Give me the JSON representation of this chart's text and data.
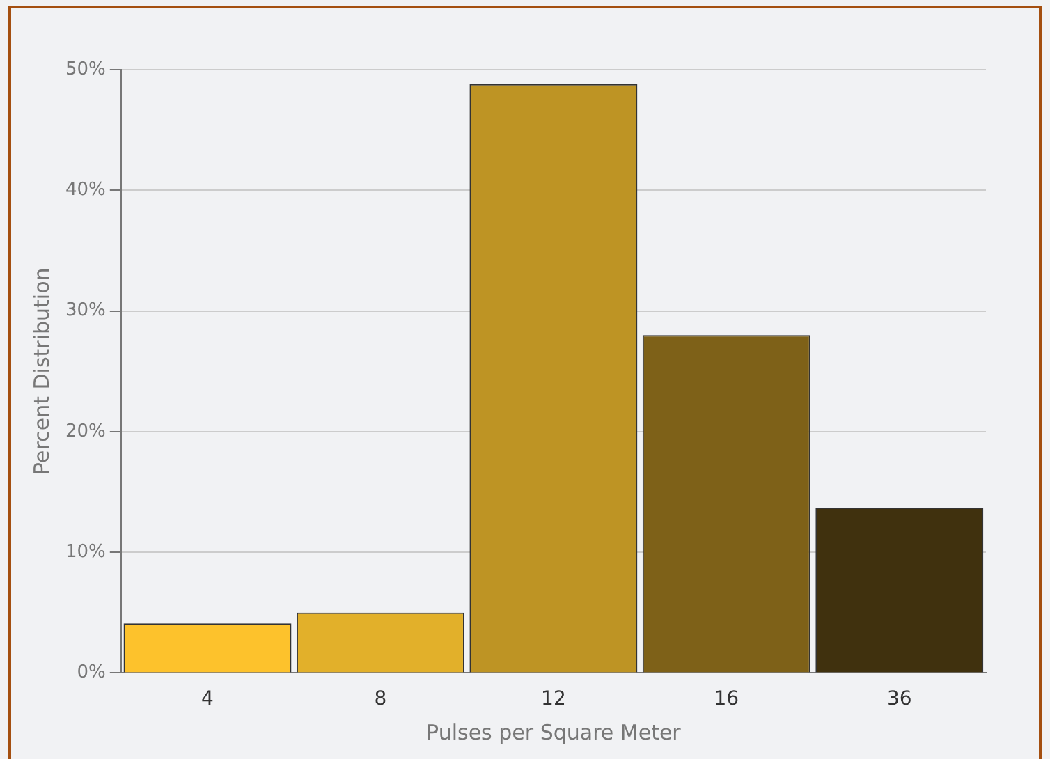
{
  "chart_data": {
    "type": "bar",
    "xlabel": "Pulses per Square Meter",
    "ylabel": "Percent Distribution",
    "categories": [
      "4",
      "8",
      "12",
      "16",
      "36"
    ],
    "values": [
      4.1,
      5.0,
      48.8,
      28.0,
      13.7
    ],
    "colors": [
      "#fdc22c",
      "#e2b02a",
      "#be9424",
      "#7e6118",
      "#40310e"
    ],
    "ylim": [
      0,
      50
    ],
    "yticks": [
      {
        "value": 0,
        "label": "0%"
      },
      {
        "value": 10,
        "label": "10%"
      },
      {
        "value": 20,
        "label": "20%"
      },
      {
        "value": 30,
        "label": "30%"
      },
      {
        "value": 40,
        "label": "40%"
      },
      {
        "value": 50,
        "label": "50%"
      }
    ],
    "grid": "y"
  }
}
